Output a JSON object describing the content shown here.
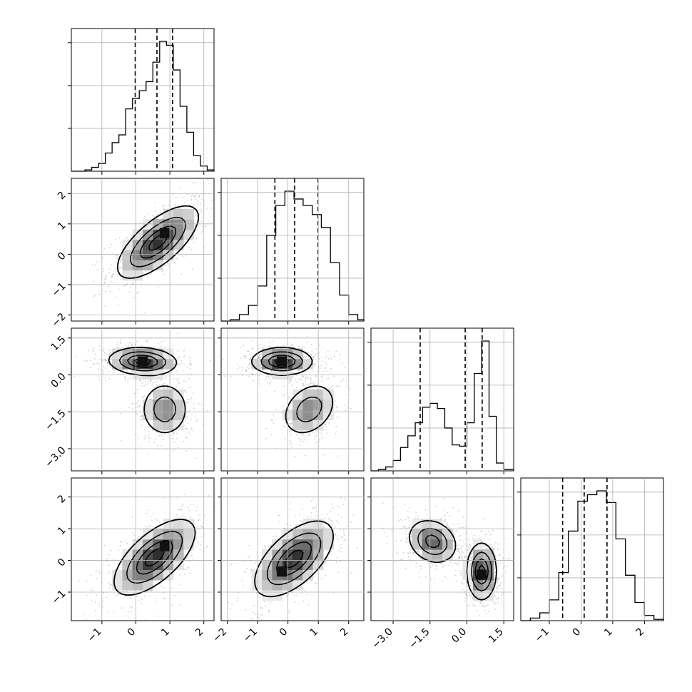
{
  "chart_data": {
    "type": "corner",
    "n_params": 4,
    "axes": [
      {
        "lim": [
          -1.9,
          2.3
        ],
        "ticks": [
          -1,
          0,
          1,
          2
        ],
        "tick_labels": [
          "−1",
          "0",
          "1",
          "2"
        ]
      },
      {
        "lim": [
          -2.2,
          2.5
        ],
        "ticks": [
          -2,
          -1,
          0,
          1,
          2
        ],
        "tick_labels": [
          "−2",
          "−1",
          "0",
          "1",
          "2"
        ]
      },
      {
        "lim": [
          -3.9,
          1.9
        ],
        "ticks": [
          -3.0,
          -1.5,
          0.0,
          1.5
        ],
        "tick_labels": [
          "−3.0",
          "−1.5",
          "0.0",
          "1.5"
        ]
      },
      {
        "lim": [
          -1.9,
          2.6
        ],
        "ticks": [
          -1,
          0,
          1,
          2
        ],
        "tick_labels": [
          "−1",
          "0",
          "1",
          "2"
        ]
      }
    ],
    "histograms": [
      {
        "quantiles": [
          -0.02,
          0.62,
          1.08
        ],
        "edges": [
          -1.9,
          -1.7,
          -1.5,
          -1.3,
          -1.1,
          -0.9,
          -0.7,
          -0.5,
          -0.3,
          -0.1,
          0.1,
          0.3,
          0.5,
          0.7,
          0.9,
          1.1,
          1.3,
          1.5,
          1.7,
          1.9,
          2.1,
          2.3
        ],
        "counts": [
          0,
          0,
          0.01,
          0.03,
          0.06,
          0.14,
          0.22,
          0.28,
          0.48,
          0.56,
          0.62,
          0.69,
          0.84,
          1.0,
          0.97,
          0.78,
          0.5,
          0.3,
          0.12,
          0.04,
          0.01
        ]
      },
      {
        "quantiles": [
          -0.43,
          0.22,
          0.99
        ],
        "edges": [
          -2.2,
          -1.9,
          -1.6,
          -1.3,
          -1.0,
          -0.7,
          -0.4,
          -0.1,
          0.2,
          0.5,
          0.8,
          1.1,
          1.4,
          1.7,
          2.0,
          2.3,
          2.5
        ],
        "counts": [
          0,
          0.01,
          0.05,
          0.12,
          0.27,
          0.66,
          0.89,
          1.0,
          0.94,
          0.89,
          0.82,
          0.72,
          0.45,
          0.2,
          0.05,
          0.01
        ]
      },
      {
        "quantiles": [
          -1.9,
          -0.07,
          0.62
        ],
        "edges": [
          -3.9,
          -3.6,
          -3.3,
          -3.0,
          -2.7,
          -2.4,
          -2.1,
          -1.8,
          -1.5,
          -1.2,
          -0.9,
          -0.6,
          -0.3,
          0.0,
          0.3,
          0.6,
          0.9,
          1.2,
          1.5,
          1.9
        ],
        "counts": [
          0,
          0.01,
          0.03,
          0.08,
          0.18,
          0.27,
          0.37,
          0.49,
          0.52,
          0.48,
          0.33,
          0.2,
          0.19,
          0.37,
          0.75,
          1.0,
          0.42,
          0.06,
          0.01
        ]
      },
      {
        "quantiles": [
          -0.58,
          0.1,
          0.82
        ],
        "edges": [
          -1.9,
          -1.6,
          -1.3,
          -1.0,
          -0.7,
          -0.4,
          -0.1,
          0.2,
          0.5,
          0.8,
          1.1,
          1.4,
          1.7,
          2.0,
          2.3,
          2.6
        ],
        "counts": [
          0,
          0.02,
          0.06,
          0.16,
          0.37,
          0.69,
          0.92,
          0.97,
          1.0,
          0.91,
          0.63,
          0.35,
          0.14,
          0.04,
          0.01
        ]
      }
    ],
    "pairs": [
      {
        "x": 0,
        "y": 1,
        "modes": [
          {
            "cx": 0.65,
            "cy": 0.4,
            "sx": 0.6,
            "sy": 0.6,
            "rho": 0.7,
            "w": 1.0
          }
        ],
        "levels": [
          0.14,
          0.4,
          0.68,
          0.9
        ],
        "peak": [
          0.85,
          0.7
        ]
      },
      {
        "x": 0,
        "y": 2,
        "modes": [
          {
            "cx": 0.2,
            "cy": 0.55,
            "sx": 0.5,
            "sy": 0.28,
            "rho": -0.1,
            "w": 1.0
          },
          {
            "cx": 0.85,
            "cy": -1.4,
            "sx": 0.35,
            "sy": 0.55,
            "rho": 0.0,
            "w": 0.6
          }
        ],
        "levels": [
          0.14,
          0.4,
          0.68,
          0.9
        ],
        "peak": [
          0.2,
          0.55
        ]
      },
      {
        "x": 1,
        "y": 2,
        "modes": [
          {
            "cx": -0.2,
            "cy": 0.55,
            "sx": 0.5,
            "sy": 0.28,
            "rho": 0.0,
            "w": 1.0
          },
          {
            "cx": 0.7,
            "cy": -1.4,
            "sx": 0.45,
            "sy": 0.55,
            "rho": 0.3,
            "w": 0.6
          }
        ],
        "levels": [
          0.14,
          0.4,
          0.68,
          0.9
        ],
        "peak": [
          -0.2,
          0.55
        ]
      },
      {
        "x": 0,
        "y": 3,
        "modes": [
          {
            "cx": 0.55,
            "cy": 0.1,
            "sx": 0.6,
            "sy": 0.6,
            "rho": 0.65,
            "w": 1.0
          }
        ],
        "levels": [
          0.14,
          0.4,
          0.68,
          0.9
        ],
        "peak": [
          0.85,
          0.45
        ]
      },
      {
        "x": 1,
        "y": 3,
        "modes": [
          {
            "cx": 0.2,
            "cy": 0.05,
            "sx": 0.65,
            "sy": 0.6,
            "rho": 0.6,
            "w": 1.0
          }
        ],
        "levels": [
          0.14,
          0.4,
          0.68,
          0.9
        ],
        "peak": [
          -0.2,
          -0.35
        ]
      },
      {
        "x": 2,
        "y": 3,
        "modes": [
          {
            "cx": -1.4,
            "cy": 0.6,
            "sx": 0.5,
            "sy": 0.35,
            "rho": -0.2,
            "w": 0.8
          },
          {
            "cx": 0.6,
            "cy": -0.35,
            "sx": 0.3,
            "sy": 0.45,
            "rho": 0.0,
            "w": 1.0
          }
        ],
        "levels": [
          0.14,
          0.4,
          0.68,
          0.9
        ],
        "peak": [
          0.6,
          -0.45
        ]
      }
    ]
  }
}
